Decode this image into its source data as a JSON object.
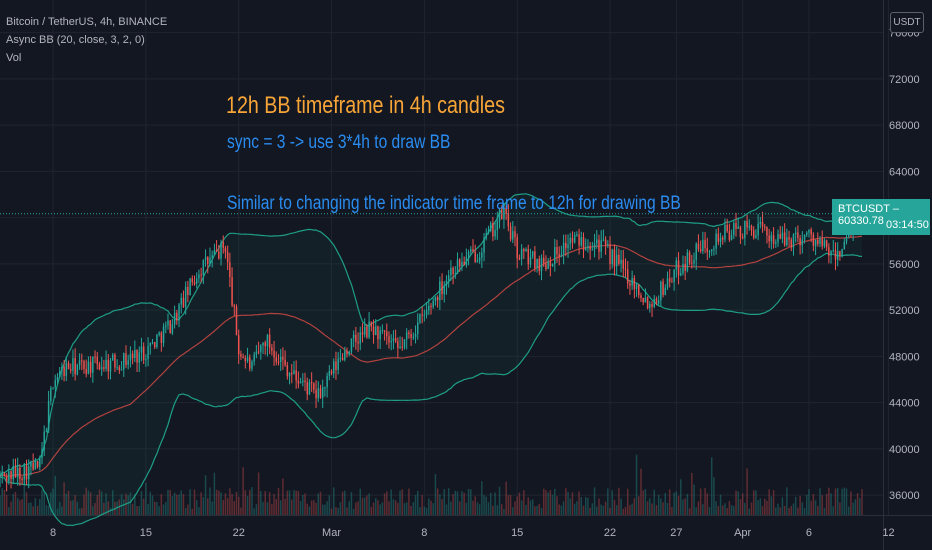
{
  "legend": {
    "symbol": "Bitcoin / TetherUS, 4h, BINANCE",
    "indicator": "Async BB (20, close, 3, 2, 0)",
    "volume": "Vol"
  },
  "annotations": {
    "title": "12h BB timeframe in 4h candles",
    "sync": "sync = 3   -> use 3*4h to draw BB",
    "similar": "Similar to changing the indicator time frame to 12h for drawing BB"
  },
  "price_scale": {
    "currency": "USDT",
    "last_price_label": "BTCUSDT",
    "last_price": "60330.78",
    "countdown": "03:14:50"
  },
  "colors": {
    "background": "#131722",
    "up": "#26a69a",
    "down": "#ef5350",
    "basis": "#b2423f",
    "bands": "#1e9e86",
    "title": "#f7a537",
    "text": "#2a8cf0"
  },
  "chart_data": {
    "type": "candlestick",
    "symbol": "BTCUSDT",
    "interval": "4h",
    "y_axis": {
      "ticks": [
        36000,
        40000,
        44000,
        48000,
        52000,
        56000,
        60000,
        64000,
        68000,
        72000,
        76000
      ],
      "tick_labels": [
        "36000",
        "40000",
        "44000",
        "48000",
        "52000",
        "56000",
        "60000",
        "64000",
        "68000",
        "72000",
        "76000"
      ],
      "range": [
        34800,
        77000
      ]
    },
    "x_axis": {
      "tick_labels": [
        "8",
        "15",
        "22",
        "Mar",
        "8",
        "15",
        "22",
        "27",
        "Apr",
        "6",
        "12"
      ],
      "dates": [
        "2021-02-08",
        "2021-02-15",
        "2021-02-22",
        "2021-03-01",
        "2021-03-08",
        "2021-03-15",
        "2021-03-22",
        "2021-03-27",
        "2021-04-01",
        "2021-04-06",
        "2021-04-12"
      ],
      "range": [
        "2021-02-04",
        "2021-04-10"
      ]
    },
    "close_anchors": [
      [
        "2021-02-04",
        37500
      ],
      [
        "2021-02-07",
        38500
      ],
      [
        "2021-02-08",
        46000
      ],
      [
        "2021-02-09",
        47000
      ],
      [
        "2021-02-13",
        47500
      ],
      [
        "2021-02-15",
        48500
      ],
      [
        "2021-02-17",
        51000
      ],
      [
        "2021-02-19",
        55500
      ],
      [
        "2021-02-21",
        57500
      ],
      [
        "2021-02-22",
        48500
      ],
      [
        "2021-02-23",
        47000
      ],
      [
        "2021-02-24",
        49500
      ],
      [
        "2021-02-26",
        46500
      ],
      [
        "2021-02-28",
        44500
      ],
      [
        "2021-03-02",
        48500
      ],
      [
        "2021-03-04",
        50500
      ],
      [
        "2021-03-06",
        48500
      ],
      [
        "2021-03-08",
        51500
      ],
      [
        "2021-03-10",
        55500
      ],
      [
        "2021-03-12",
        57000
      ],
      [
        "2021-03-14",
        60500
      ],
      [
        "2021-03-15",
        57000
      ],
      [
        "2021-03-17",
        56000
      ],
      [
        "2021-03-19",
        58000
      ],
      [
        "2021-03-21",
        58000
      ],
      [
        "2021-03-23",
        55500
      ],
      [
        "2021-03-25",
        52500
      ],
      [
        "2021-03-27",
        55500
      ],
      [
        "2021-03-29",
        57500
      ],
      [
        "2021-03-31",
        58800
      ],
      [
        "2021-04-02",
        59000
      ],
      [
        "2021-04-04",
        58000
      ],
      [
        "2021-04-06",
        58500
      ],
      [
        "2021-04-08",
        56500
      ],
      [
        "2021-04-10",
        60330
      ]
    ],
    "bollinger": {
      "length": 20,
      "source": "close",
      "sync": 3,
      "mult": 2
    },
    "volume": "shown as bars along bottom of price pane"
  }
}
